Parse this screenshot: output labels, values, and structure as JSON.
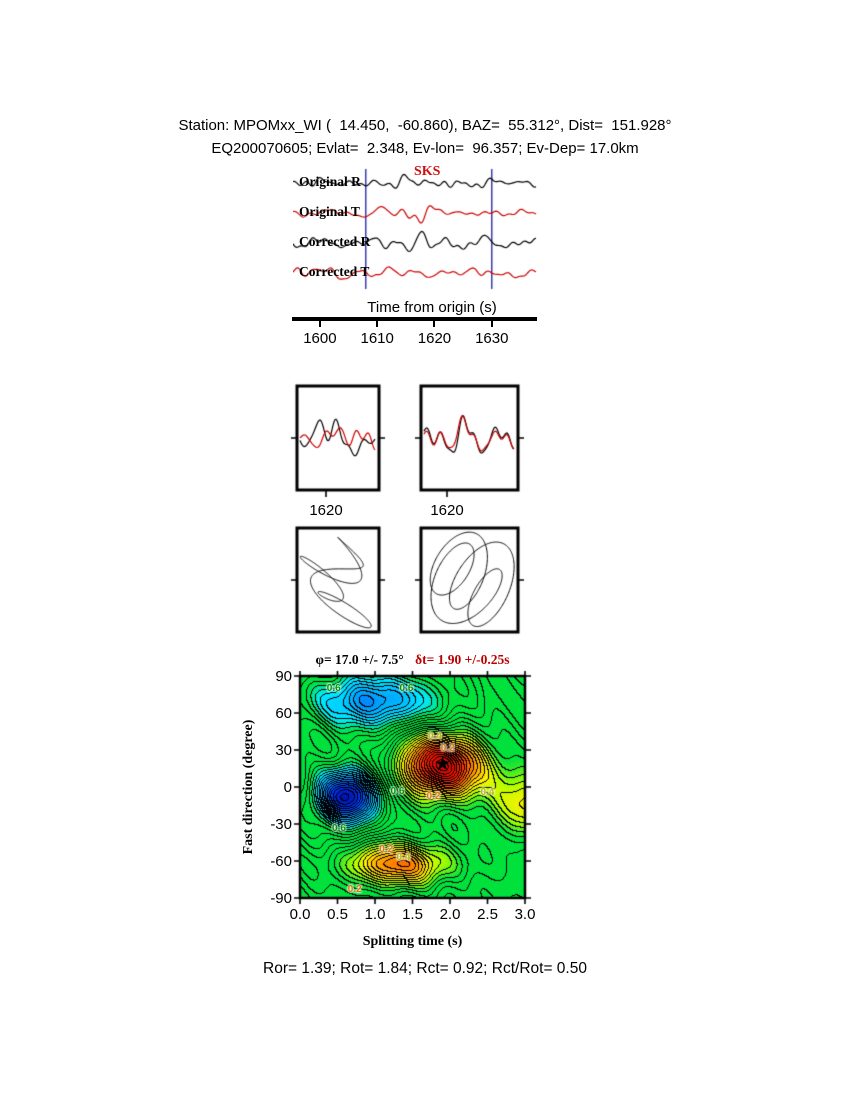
{
  "header": {
    "line1": "Station: MPOMxx_WI (  14.450,  -60.860), BAZ=  55.312°, Dist=  151.928°",
    "line2": "EQ200070605; Evlat=  2.348, Ev-lon=  96.357; Ev-Dep= 17.0km"
  },
  "footer": {
    "text": "Ror= 1.39; Rot= 1.84; Rct= 0.92; Rct/Rot= 0.50"
  },
  "stats": {
    "Ror": 1.39,
    "Rot": 1.84,
    "Rct": 0.92,
    "Rct_over_Rot": 0.5
  },
  "station": {
    "name": "MPOMxx_WI",
    "lat": 14.45,
    "lon": -60.86,
    "baz_deg": 55.312,
    "dist_deg": 151.928
  },
  "event": {
    "id": "EQ200070605",
    "ev_lat": 2.348,
    "ev_lon": 96.357,
    "ev_dep_km": 17.0
  },
  "chart_data": [
    {
      "id": "seismograms",
      "type": "line",
      "xlabel": "Time from origin (s)",
      "xlim": [
        1595.3,
        1637.9
      ],
      "x_ticks": [
        1600,
        1610,
        1620,
        1630
      ],
      "series": [
        {
          "name": "Original R",
          "color": "#000000"
        },
        {
          "name": "Original T",
          "color": "#cc0000"
        },
        {
          "name": "Corrected R",
          "color": "#000000"
        },
        {
          "name": "Corrected T",
          "color": "#cc0000"
        }
      ],
      "phase_label": "SKS",
      "phase_color": "#cc1111",
      "phase_time_s": 1619,
      "window_s": [
        1608,
        1630
      ],
      "window_color": "#3a3aae"
    },
    {
      "id": "window-seismograms",
      "type": "line",
      "series_colors": [
        "#000000",
        "#cc0000"
      ],
      "panels": [
        {
          "x_tick_label": "1620",
          "tick_frac": 0.35
        },
        {
          "x_tick_label": "1620",
          "tick_frac": 0.27
        }
      ]
    },
    {
      "id": "particle-motion",
      "type": "scatter",
      "panels": 2
    },
    {
      "id": "error-surface",
      "type": "heatmap",
      "title_phi": "φ= 17.0 +/- 7.5°",
      "title_dt": "δt= 1.90 +/-0.25s",
      "title_dt_color": "#bb0000",
      "xlabel": "Splitting time (s)",
      "ylabel": "Fast direction (degree)",
      "xlim": [
        0.0,
        3.0
      ],
      "ylim": [
        -90,
        90
      ],
      "x_ticks": [
        "0.0",
        "0.5",
        "1.0",
        "1.5",
        "2.0",
        "2.5",
        "3.0"
      ],
      "y_ticks": [
        "90",
        "60",
        "30",
        "0",
        "-30",
        "-60",
        "-90"
      ],
      "best_fit": {
        "phi_deg": 17.0,
        "phi_err_deg": 7.5,
        "dt_s": 1.9,
        "dt_err_s": 0.25
      },
      "star": {
        "dt": 1.9,
        "phi": 17,
        "glyph": "★"
      },
      "contour_interval": 0.05,
      "contour_labels": [
        {
          "t": "0.6",
          "x": 0.45,
          "y": 79,
          "c": "#009600"
        },
        {
          "t": "0.6",
          "x": 1.42,
          "y": 79,
          "c": "#009600"
        },
        {
          "t": "0.4",
          "x": 1.8,
          "y": 40,
          "c": "#b9b900"
        },
        {
          "t": "0.2",
          "x": 1.97,
          "y": 30,
          "c": "#e07800"
        },
        {
          "t": "0.6",
          "x": 1.3,
          "y": -5,
          "c": "#009600"
        },
        {
          "t": "0.2",
          "x": 1.78,
          "y": -9,
          "c": "#e07800"
        },
        {
          "t": "0.4",
          "x": 2.5,
          "y": -6,
          "c": "#b9b900"
        },
        {
          "t": "0.6",
          "x": 0.52,
          "y": -35,
          "c": "#009600"
        },
        {
          "t": "0.2",
          "x": 1.15,
          "y": -52,
          "c": "#e07800"
        },
        {
          "t": "0.4",
          "x": 1.38,
          "y": -58,
          "c": "#b9b900"
        },
        {
          "t": "0.2",
          "x": 0.73,
          "y": -84,
          "c": "#e07800"
        }
      ],
      "field_bumps": [
        {
          "x": 1.9,
          "y": 17,
          "a": 1.05,
          "sx": 0.55,
          "sy": 26
        },
        {
          "x": 1.3,
          "y": -63,
          "a": 0.62,
          "sx": 0.75,
          "sy": 18
        },
        {
          "x": 0.62,
          "y": -8,
          "a": -0.9,
          "sx": 0.42,
          "sy": 22
        },
        {
          "x": 1.0,
          "y": 70,
          "a": -0.55,
          "sx": 0.85,
          "sy": 22
        },
        {
          "x": 3.1,
          "y": -12,
          "a": 0.42,
          "sx": 0.55,
          "sy": 30
        }
      ]
    }
  ]
}
